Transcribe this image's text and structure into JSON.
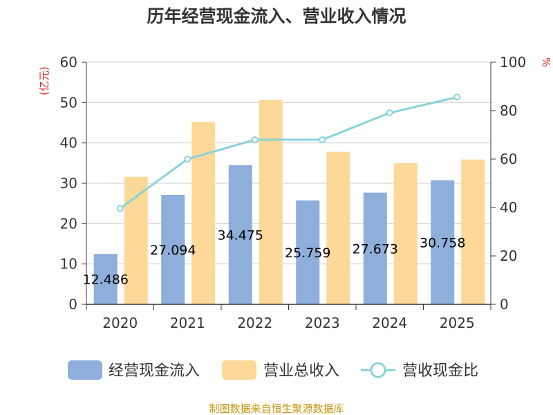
{
  "chart_data": {
    "type": "bar",
    "title": "历年经营现金流入、营业收入情况",
    "categories": [
      "2020",
      "2021",
      "2022",
      "2023",
      "2024",
      "2025"
    ],
    "series": [
      {
        "name": "经营现金流入",
        "type": "bar",
        "axis": "left",
        "color": "#8eaedb",
        "values": [
          12.486,
          27.094,
          34.475,
          25.759,
          27.673,
          30.758
        ],
        "labels": [
          "12.486",
          "27.094",
          "34.475",
          "25.759",
          "27.673",
          "30.758"
        ]
      },
      {
        "name": "营业总收入",
        "type": "bar",
        "axis": "left",
        "color": "#fdd899",
        "values": [
          31.6,
          45.2,
          50.7,
          37.8,
          35.0,
          35.9
        ]
      },
      {
        "name": "营收现金比",
        "type": "line",
        "axis": "right",
        "color": "#88d3d9",
        "values": [
          39.6,
          60.0,
          68.0,
          68.0,
          79.1,
          85.6
        ]
      }
    ],
    "y_left": {
      "label": "(亿元)",
      "ylim": [
        0,
        60
      ],
      "ticks": [
        "0",
        "10",
        "20",
        "30",
        "40",
        "50",
        "60"
      ],
      "color": "#dd2222"
    },
    "y_right": {
      "label": "%",
      "ylim": [
        0,
        100
      ],
      "ticks": [
        "0",
        "20",
        "40",
        "60",
        "80",
        "100"
      ],
      "color": "#dd2222"
    },
    "grid": true,
    "legend": "bottom"
  },
  "source": {
    "text": "制图数据来自恒生聚源数据库",
    "color": "#c8960e"
  }
}
